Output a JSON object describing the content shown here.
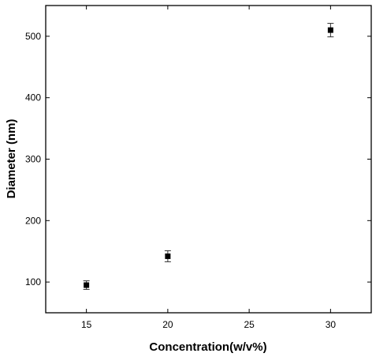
{
  "chart_data": {
    "type": "scatter",
    "title": "",
    "xlabel": "Concentration(w/v%)",
    "ylabel": "Diameter (nm)",
    "xlim": [
      12.5,
      32.5
    ],
    "ylim": [
      50,
      550
    ],
    "xticks": [
      15,
      20,
      25,
      30
    ],
    "yticks": [
      100,
      200,
      300,
      400,
      500
    ],
    "xtick_labels": [
      "15",
      "20",
      "25",
      "30"
    ],
    "ytick_labels": [
      "100",
      "200",
      "300",
      "400",
      "500"
    ],
    "grid": false,
    "series": [
      {
        "x": [
          15,
          20,
          30
        ],
        "y": [
          95,
          142,
          510
        ],
        "error": [
          7,
          9,
          11
        ],
        "marker": "square",
        "color": "#000000"
      }
    ]
  }
}
